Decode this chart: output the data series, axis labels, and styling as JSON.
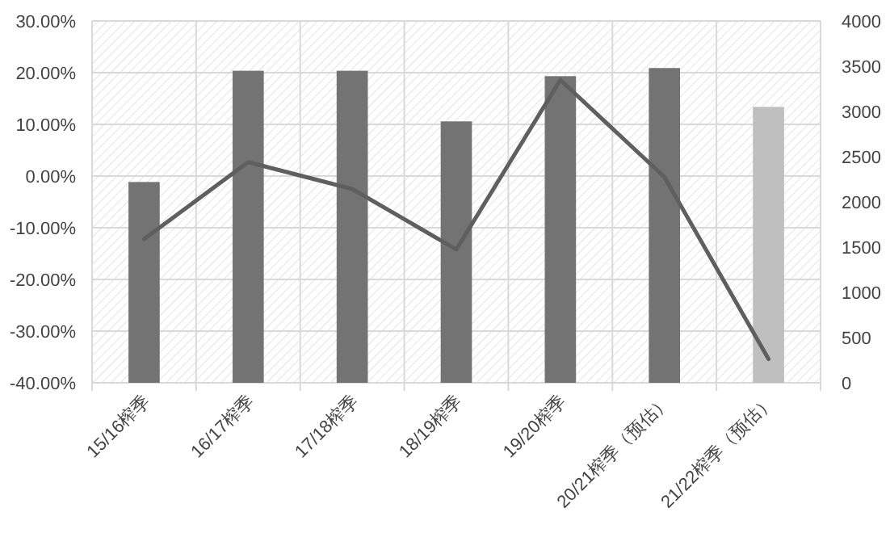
{
  "chart_data": {
    "type": "bar",
    "categories": [
      "15/16榨季",
      "16/17榨季",
      "17/18榨季",
      "18/19榨季",
      "19/20榨季",
      "20/21榨季（预估）",
      "21/22榨季（预估）"
    ],
    "series": [
      {
        "axis": "y2",
        "colors": [
          "#737373",
          "#737373",
          "#737373",
          "#737373",
          "#737373",
          "#737373",
          "#bfbfbf"
        ],
        "values": [
          2220,
          3450,
          3450,
          2890,
          3390,
          3480,
          3050
        ]
      },
      {
        "type": "line",
        "axis": "y",
        "color": "#5f5f5f",
        "values": [
          -12.2,
          2.7,
          -2.5,
          -14.2,
          18.6,
          -0.2,
          -35.4
        ]
      }
    ],
    "ylim": [
      -40,
      30
    ],
    "yticks": [
      {
        "value": -40,
        "label": "-40.00%"
      },
      {
        "value": -30,
        "label": "-30.00%"
      },
      {
        "value": -20,
        "label": "-20.00%"
      },
      {
        "value": -10,
        "label": "-10.00%"
      },
      {
        "value": 0,
        "label": "0.00%"
      },
      {
        "value": 10,
        "label": "10.00%"
      },
      {
        "value": 20,
        "label": "20.00%"
      },
      {
        "value": 30,
        "label": "30.00%"
      }
    ],
    "y2lim": [
      0,
      4000
    ],
    "y2ticks": [
      0,
      500,
      1000,
      1500,
      2000,
      2500,
      3000,
      3500,
      4000
    ],
    "grid": true
  }
}
